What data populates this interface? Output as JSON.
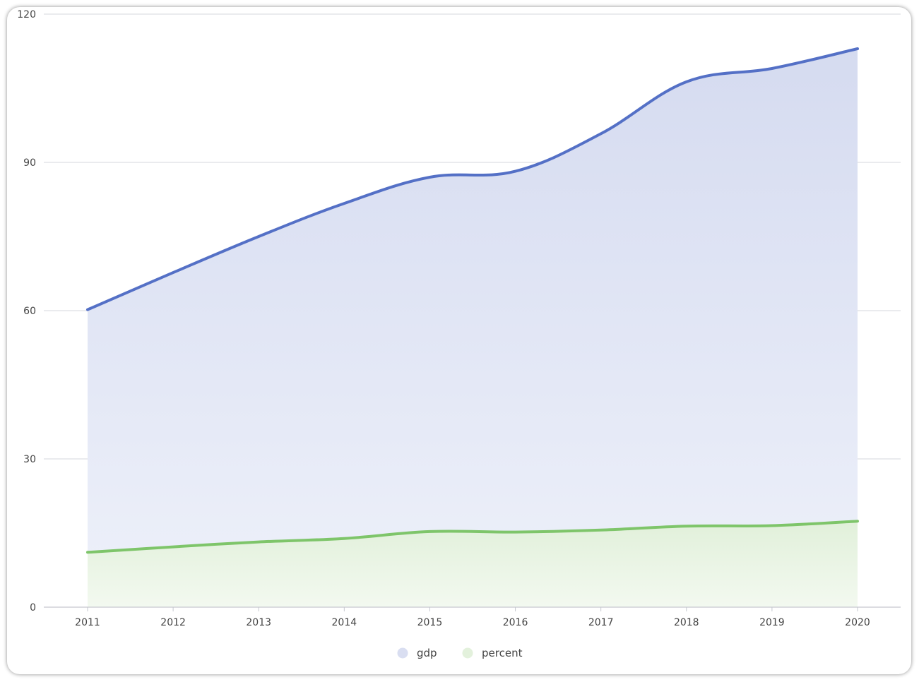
{
  "chart_data": {
    "type": "area",
    "categories": [
      "2011",
      "2012",
      "2013",
      "2014",
      "2015",
      "2016",
      "2017",
      "2018",
      "2019",
      "2020"
    ],
    "series": [
      {
        "name": "gdp",
        "values": [
          60.2,
          67.7,
          75.0,
          81.7,
          87.0,
          88.2,
          95.8,
          106.3,
          109.0,
          113.0
        ],
        "color": "#5470c6",
        "fill": "#d9def1"
      },
      {
        "name": "percent",
        "values": [
          11.1,
          12.2,
          13.2,
          13.9,
          15.3,
          15.2,
          15.6,
          16.4,
          16.5,
          17.4
        ],
        "color": "#7ec56a",
        "fill": "#e3f1dc"
      }
    ],
    "ylim": [
      0,
      120
    ],
    "yticks": [
      "0",
      "30",
      "60",
      "90",
      "120"
    ],
    "grid": true,
    "legend": "bottom-center"
  }
}
